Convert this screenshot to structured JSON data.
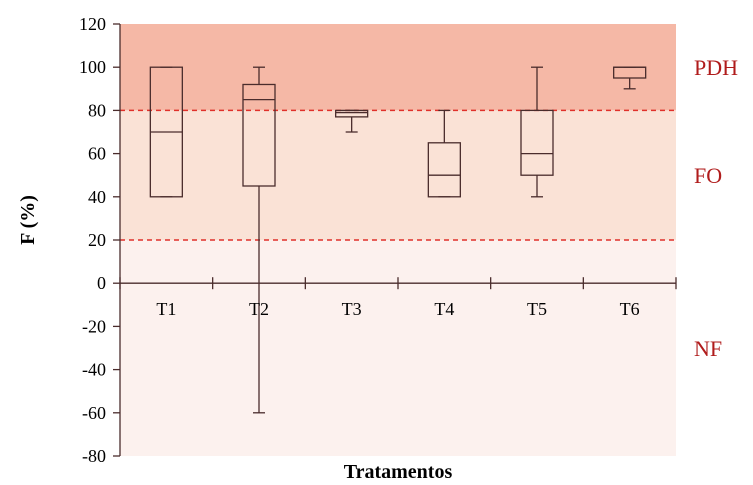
{
  "chart_data": {
    "type": "boxplot",
    "title": "",
    "xlabel": "Tratamentos",
    "ylabel": "F (%)",
    "ylim": [
      -80,
      120
    ],
    "yticks": [
      120,
      100,
      80,
      60,
      40,
      20,
      0,
      -20,
      -40,
      -60,
      -80
    ],
    "grid": false,
    "categories": [
      "T1",
      "T2",
      "T3",
      "T4",
      "T5",
      "T6"
    ],
    "boxes": [
      {
        "category": "T1",
        "min": 40,
        "q1": 40,
        "median": 70,
        "q3": 100,
        "max": 100
      },
      {
        "category": "T2",
        "min": -60,
        "q1": 45,
        "median": 85,
        "q3": 92,
        "max": 100
      },
      {
        "category": "T3",
        "min": 70,
        "q1": 77,
        "median": 79,
        "q3": 80,
        "max": 80
      },
      {
        "category": "T4",
        "min": 40,
        "q1": 40,
        "median": 50,
        "q3": 65,
        "max": 80
      },
      {
        "category": "T5",
        "min": 40,
        "q1": 50,
        "median": 60,
        "q3": 80,
        "max": 100
      },
      {
        "category": "T6",
        "min": 90,
        "q1": 95,
        "median": 100,
        "q3": 100,
        "max": 100
      }
    ],
    "zones": [
      {
        "label": "PDH",
        "from": 80,
        "to": 120,
        "color": "#f5b8a6"
      },
      {
        "label": "FO",
        "from": 20,
        "to": 80,
        "color": "#fae2d6"
      },
      {
        "label": "NF",
        "from": -80,
        "to": 20,
        "color": "#fcf1ee"
      }
    ],
    "thresholds": [
      80,
      20
    ],
    "colors": {
      "box_stroke": "#4a2c2c",
      "axis": "#4a2c2c",
      "threshold": "#e0302a",
      "zone_label": "#b01c1c"
    }
  }
}
